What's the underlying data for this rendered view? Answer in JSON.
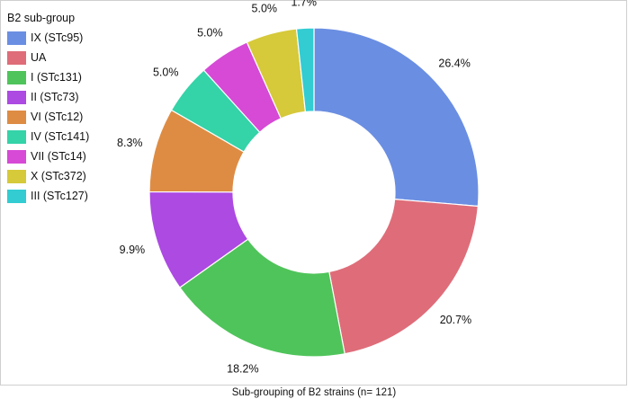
{
  "chart_data": {
    "type": "pie",
    "donut": true,
    "legend_title": "B2 sub-group",
    "legend_position": "top-left",
    "caption": "Sub-grouping of B2 strains (n= 121)",
    "slices": [
      {
        "label": "IX (STc95)",
        "value": 26.4,
        "value_label": "26.4%",
        "color": "#6a8ee2"
      },
      {
        "label": "UA",
        "value": 20.7,
        "value_label": "20.7%",
        "color": "#de6d79"
      },
      {
        "label": "I (STc131)",
        "value": 18.2,
        "value_label": "18.2%",
        "color": "#4fc45a"
      },
      {
        "label": "II (STc73)",
        "value": 9.9,
        "value_label": "9.9%",
        "color": "#ac4ae2"
      },
      {
        "label": "VI (STc12)",
        "value": 8.3,
        "value_label": "8.3%",
        "color": "#de8c44"
      },
      {
        "label": "IV (STc141)",
        "value": 5.0,
        "value_label": "5.0%",
        "color": "#34d3a8"
      },
      {
        "label": "VII (STc14)",
        "value": 5.0,
        "value_label": "5.0%",
        "color": "#d64ad6"
      },
      {
        "label": "X (STc372)",
        "value": 5.0,
        "value_label": "5.0%",
        "color": "#d6c93a"
      },
      {
        "label": "III (STc127)",
        "value": 1.7,
        "value_label": "1.7%",
        "color": "#32ccd2"
      }
    ]
  }
}
